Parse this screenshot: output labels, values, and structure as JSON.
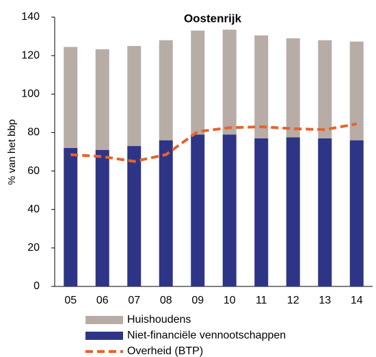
{
  "chart_data": {
    "type": "bar",
    "stacked": true,
    "title": "Oostenrijk",
    "y_label": "% van het bbp",
    "categories": [
      "05",
      "06",
      "07",
      "08",
      "09",
      "10",
      "11",
      "12",
      "13",
      "14"
    ],
    "series": [
      {
        "name": "Huishoudens",
        "color": "#b8aca6",
        "stack": 1,
        "values": [
          52.5,
          52.3,
          52,
          52,
          54,
          54.5,
          53.5,
          51.5,
          51,
          51.3
        ]
      },
      {
        "name": "Niet-financiële vennootschappen",
        "color": "#2e3586",
        "stack": 0,
        "values": [
          72,
          71,
          73,
          76,
          79,
          79,
          77,
          77.5,
          77,
          76
        ]
      },
      {
        "name": "Overheid (BTP)",
        "color": "#e8622a",
        "type": "line",
        "dashed": true,
        "values": [
          68.5,
          67.5,
          65,
          68.5,
          80.5,
          82.5,
          83,
          82,
          81.5,
          84.5
        ]
      }
    ],
    "ylim": [
      0,
      140
    ],
    "yticks": [
      0,
      20,
      40,
      60,
      80,
      100,
      120,
      140
    ],
    "grid": false
  }
}
